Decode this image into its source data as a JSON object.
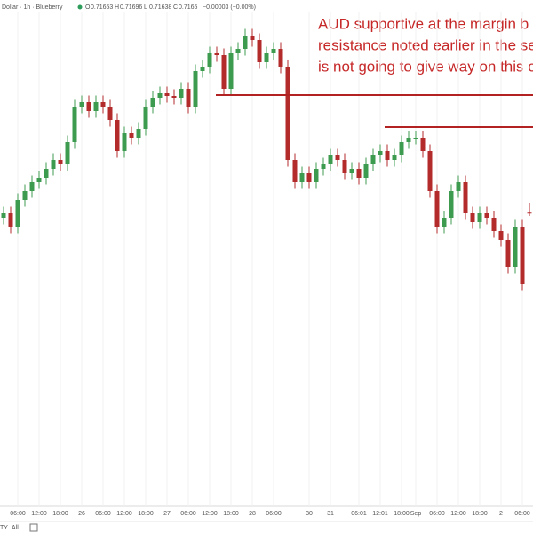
{
  "chart_data": {
    "type": "candlestick",
    "header": {
      "symbol": "Dollar · 1h · Blueberry",
      "ohlc_labels": [
        "O",
        "H",
        "L",
        "C"
      ],
      "change": "−0.00003 (−0.00%)"
    },
    "annotation": [
      "AUD supportive at the margin b",
      "resistance noted earlier in the se",
      "is not going to give way on this c"
    ],
    "ranges": [
      "TY",
      "All"
    ],
    "categories": [
      null,
      null,
      "06:00",
      null,
      null,
      "12:00",
      null,
      null,
      "18:00",
      null,
      null,
      "26",
      null,
      null,
      "06:00",
      null,
      null,
      "12:00",
      null,
      null,
      "18:00",
      null,
      null,
      "27",
      null,
      null,
      "06:00",
      null,
      null,
      "12:00",
      null,
      null,
      "18:00",
      null,
      null,
      "28",
      null,
      null,
      "06:00",
      null,
      null,
      null,
      null,
      "30",
      null,
      null,
      "31",
      null,
      null,
      null,
      "06:01",
      null,
      null,
      "12:01",
      null,
      null,
      "18:00",
      null,
      "Sep",
      null,
      null,
      "06:00",
      null,
      null,
      "12:00",
      null,
      null,
      "18:00",
      null,
      null,
      "2",
      null,
      null,
      "06:00",
      null
    ],
    "open": [
      0.7163,
      0.7165,
      0.7159,
      0.7171,
      0.7175,
      0.7179,
      0.7181,
      0.7185,
      0.7189,
      0.7187,
      0.7197,
      0.7213,
      0.7215,
      0.7211,
      0.7215,
      0.7213,
      0.7207,
      0.7193,
      0.7201,
      0.7199,
      0.7203,
      0.7213,
      0.7217,
      0.7219,
      0.72178,
      0.7217,
      0.7221,
      0.7213,
      0.7229,
      0.7231,
      0.7237,
      0.72362,
      0.7221,
      0.7237,
      0.7239,
      0.7245,
      0.7243,
      0.7233,
      0.7237,
      0.7239,
      0.7231,
      0.7189,
      0.7179,
      0.7183,
      0.7179,
      0.7185,
      0.7187,
      0.7191,
      0.7189,
      0.7183,
      0.7185,
      0.7181,
      0.7187,
      0.7191,
      0.7193,
      0.7189,
      0.7191,
      0.7197,
      0.7199,
      0.7199,
      0.7193,
      0.7175,
      0.7159,
      0.7163,
      0.7175,
      0.7179,
      0.7165,
      0.7161,
      0.7165,
      0.7163,
      0.7157,
      0.7153,
      0.7141,
      0.7159,
      0.71653
    ],
    "high": [
      0.7168,
      0.7168,
      0.7174,
      0.7178,
      0.7182,
      0.7184,
      0.7188,
      0.7192,
      0.7192,
      0.72,
      0.7216,
      0.7218,
      0.7218,
      0.7218,
      0.7218,
      0.7216,
      0.721,
      0.7204,
      0.7204,
      0.7206,
      0.7216,
      0.722,
      0.7222,
      0.7222,
      0.72208,
      0.7224,
      0.7224,
      0.7232,
      0.7234,
      0.724,
      0.724,
      0.72392,
      0.724,
      0.7242,
      0.7248,
      0.7248,
      0.7246,
      0.724,
      0.7242,
      0.7242,
      0.7234,
      0.7192,
      0.7186,
      0.7186,
      0.7188,
      0.719,
      0.7194,
      0.7194,
      0.7192,
      0.7188,
      0.7188,
      0.719,
      0.7194,
      0.7196,
      0.7196,
      0.7194,
      0.72,
      0.7202,
      0.7202,
      0.7202,
      0.7196,
      0.7178,
      0.7166,
      0.7178,
      0.7182,
      0.7182,
      0.7168,
      0.7168,
      0.7168,
      0.7166,
      0.716,
      0.7156,
      0.7162,
      0.7162,
      0.71696
    ],
    "low": [
      0.716,
      0.7156,
      0.7156,
      0.7168,
      0.7172,
      0.7176,
      0.7178,
      0.7182,
      0.7184,
      0.7184,
      0.7194,
      0.721,
      0.7208,
      0.7208,
      0.721,
      0.7204,
      0.719,
      0.719,
      0.7196,
      0.7196,
      0.72,
      0.721,
      0.7214,
      0.72148,
      0.7214,
      0.7214,
      0.721,
      0.721,
      0.7226,
      0.7228,
      0.72332,
      0.7218,
      0.7218,
      0.7234,
      0.7236,
      0.724,
      0.723,
      0.723,
      0.7234,
      0.7228,
      0.7186,
      0.7176,
      0.7176,
      0.7176,
      0.7176,
      0.7182,
      0.7184,
      0.7186,
      0.718,
      0.718,
      0.7178,
      0.7178,
      0.7184,
      0.7188,
      0.7186,
      0.7186,
      0.7188,
      0.7194,
      0.7196,
      0.719,
      0.7172,
      0.7156,
      0.7156,
      0.716,
      0.7172,
      0.7162,
      0.7158,
      0.7158,
      0.716,
      0.7154,
      0.715,
      0.7138,
      0.7138,
      0.713,
      0.71638
    ],
    "close": [
      0.7165,
      0.7159,
      0.7171,
      0.7175,
      0.7179,
      0.7181,
      0.7185,
      0.7189,
      0.7187,
      0.7197,
      0.7213,
      0.7215,
      0.7211,
      0.7215,
      0.7213,
      0.7207,
      0.7193,
      0.7201,
      0.7199,
      0.7203,
      0.7213,
      0.7217,
      0.7219,
      0.72178,
      0.7217,
      0.7221,
      0.7213,
      0.7229,
      0.7231,
      0.7237,
      0.72362,
      0.7221,
      0.7237,
      0.7239,
      0.7245,
      0.7243,
      0.7233,
      0.7237,
      0.7239,
      0.7231,
      0.7189,
      0.7179,
      0.7183,
      0.7179,
      0.7185,
      0.7187,
      0.7191,
      0.7189,
      0.7183,
      0.7185,
      0.7181,
      0.7187,
      0.7191,
      0.7193,
      0.7189,
      0.7191,
      0.7197,
      0.7199,
      0.7199,
      0.7193,
      0.7175,
      0.7159,
      0.7163,
      0.7175,
      0.7179,
      0.7165,
      0.7161,
      0.7165,
      0.7163,
      0.7157,
      0.7153,
      0.7141,
      0.7159,
      0.7133,
      0.7165
    ],
    "up_color": "#3d9b4f",
    "down_color": "#b32b2b",
    "levels": [
      0.72182,
      0.72038
    ],
    "level_color": "#b22222",
    "ylim": [
      0.7031,
      0.7261
    ]
  }
}
